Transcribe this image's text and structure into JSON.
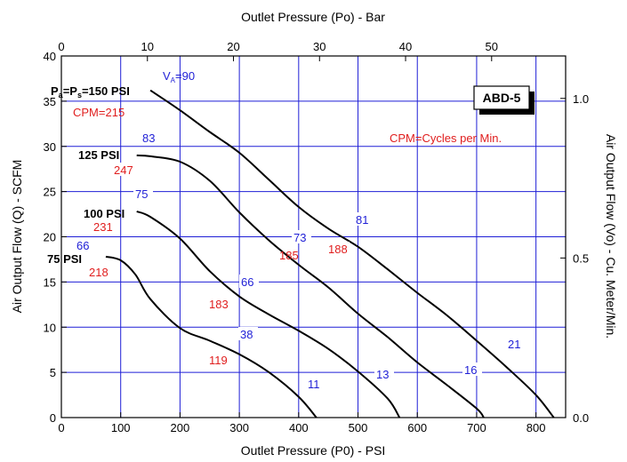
{
  "chart_data": {
    "type": "line",
    "model": "ABD-5",
    "note": "CPM=Cycles per Min.",
    "x_axis": {
      "label": "Outlet Pressure (P0) - PSI",
      "range": [
        0,
        850
      ],
      "ticks": [
        0,
        100,
        200,
        300,
        400,
        500,
        600,
        700,
        800
      ]
    },
    "x2_axis": {
      "label": "Outlet Pressure (Po) - Bar",
      "range": [
        0,
        58.6
      ],
      "ticks": [
        0,
        10,
        20,
        30,
        40,
        50
      ]
    },
    "y_axis": {
      "label": "Air Output Flow (Q) - SCFM",
      "range": [
        0,
        40
      ],
      "ticks": [
        0,
        5,
        10,
        15,
        20,
        25,
        30,
        35,
        40
      ]
    },
    "y2_axis": {
      "label": "Air Output Flow (Vo) - Cu. Meter/Min.",
      "range": [
        0,
        1.133
      ],
      "ticks": [
        "0.0",
        "0.5",
        "1.0"
      ]
    },
    "series": [
      {
        "name": "Pa=Ps=150 PSI",
        "x": [
          150,
          200,
          250,
          300,
          350,
          400,
          450,
          500,
          550,
          600,
          650,
          700,
          750,
          800,
          830
        ],
        "y": [
          36.2,
          34.0,
          31.6,
          29.3,
          26.3,
          23.3,
          20.9,
          18.9,
          16.4,
          13.8,
          11.3,
          8.5,
          5.6,
          2.5,
          0
        ]
      },
      {
        "name": "125 PSI",
        "x": [
          127,
          150,
          200,
          250,
          300,
          350,
          400,
          450,
          500,
          550,
          600,
          650,
          700,
          712
        ],
        "y": [
          29.0,
          28.9,
          28.3,
          26.2,
          22.7,
          19.6,
          16.9,
          14.4,
          11.5,
          8.9,
          6.1,
          3.6,
          1.0,
          0
        ]
      },
      {
        "name": "100 PSI",
        "x": [
          127,
          150,
          200,
          250,
          300,
          350,
          400,
          450,
          500,
          550,
          570
        ],
        "y": [
          22.8,
          22.2,
          19.8,
          16.2,
          13.4,
          11.4,
          9.6,
          7.6,
          5.1,
          2.1,
          0
        ]
      },
      {
        "name": "75 PSI",
        "x": [
          75,
          100,
          125,
          150,
          200,
          250,
          300,
          350,
          400,
          430
        ],
        "y": [
          17.8,
          17.4,
          15.8,
          13.1,
          9.9,
          8.5,
          7.0,
          5.0,
          2.3,
          0
        ]
      }
    ],
    "series_labels": [
      "Pa=Ps=150 PSI",
      "125 PSI",
      "100 PSI",
      "75 PSI"
    ],
    "va_title": "VA=90",
    "cpm_title": "CPM=215",
    "va_labels": [
      "83",
      "75",
      "66",
      "73",
      "81",
      "66",
      "38",
      "21",
      "11",
      "13",
      "16"
    ],
    "cpm_labels": [
      "247",
      "231",
      "218",
      "185",
      "188",
      "183",
      "119"
    ]
  }
}
